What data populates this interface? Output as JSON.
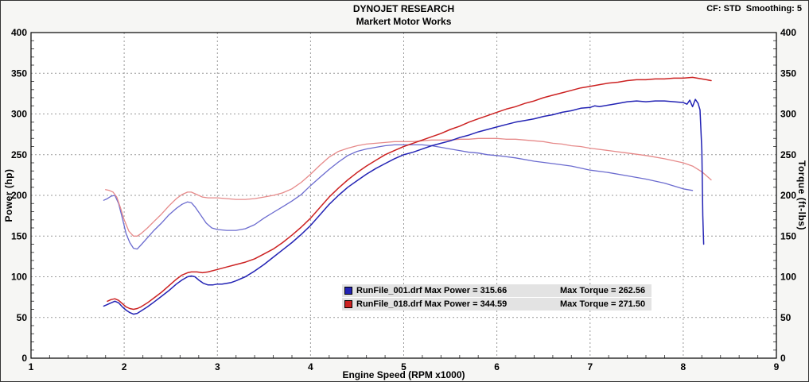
{
  "header": {
    "title": "DYNOJET RESEARCH",
    "subtitle": "Markert Motor Works",
    "correction_info": "CF: STD  Smoothing: 5"
  },
  "chart_data": {
    "type": "line",
    "title": "DYNOJET RESEARCH",
    "subtitle": "Markert Motor Works",
    "xlabel": "Engine Speed (RPM x1000)",
    "ylabel_left": "Power (hp)",
    "ylabel_right": "Torque (ft-lbs)",
    "xlim": [
      1,
      9
    ],
    "ylim": [
      0,
      400
    ],
    "x_ticks": [
      1,
      2,
      3,
      4,
      5,
      6,
      7,
      8,
      9
    ],
    "y_ticks": [
      0,
      50,
      100,
      150,
      200,
      250,
      300,
      350,
      400
    ],
    "grid": "dashed",
    "correction": "STD",
    "smoothing": 5,
    "runs": [
      {
        "file": "RunFile_001.drf",
        "max_power": 315.66,
        "max_torque": 262.56,
        "color": "#2323b4"
      },
      {
        "file": "RunFile_018.drf",
        "max_power": 344.59,
        "max_torque": 271.5,
        "color": "#cc2222"
      }
    ],
    "legend": [
      {
        "color": "#2323b4",
        "power_text": "RunFile_001.drf Max Power = 315.66",
        "torque_text": "Max Torque = 262.56"
      },
      {
        "color": "#cc2222",
        "power_text": "RunFile_018.drf Max Power = 344.59",
        "torque_text": "Max Torque = 271.50"
      }
    ],
    "series": [
      {
        "id": "run001-torque",
        "label": "RunFile_001 Torque (ft-lbs)",
        "axis": "right",
        "color": "#6b6bcf",
        "width": 1.3,
        "points": [
          [
            1.78,
            194
          ],
          [
            1.82,
            196
          ],
          [
            1.86,
            199
          ],
          [
            1.9,
            200
          ],
          [
            1.94,
            190
          ],
          [
            1.98,
            172
          ],
          [
            2.02,
            153
          ],
          [
            2.06,
            142
          ],
          [
            2.1,
            135
          ],
          [
            2.14,
            134
          ],
          [
            2.18,
            139
          ],
          [
            2.25,
            148
          ],
          [
            2.32,
            157
          ],
          [
            2.4,
            166
          ],
          [
            2.48,
            176
          ],
          [
            2.56,
            184
          ],
          [
            2.62,
            189
          ],
          [
            2.68,
            192
          ],
          [
            2.72,
            191
          ],
          [
            2.76,
            186
          ],
          [
            2.82,
            176
          ],
          [
            2.88,
            166
          ],
          [
            2.94,
            160
          ],
          [
            3.0,
            158
          ],
          [
            3.1,
            157
          ],
          [
            3.2,
            157
          ],
          [
            3.3,
            159
          ],
          [
            3.4,
            164
          ],
          [
            3.5,
            172
          ],
          [
            3.6,
            179
          ],
          [
            3.7,
            186
          ],
          [
            3.8,
            193
          ],
          [
            3.9,
            201
          ],
          [
            4.0,
            212
          ],
          [
            4.1,
            222
          ],
          [
            4.2,
            232
          ],
          [
            4.3,
            241
          ],
          [
            4.4,
            249
          ],
          [
            4.5,
            254
          ],
          [
            4.6,
            257
          ],
          [
            4.7,
            259
          ],
          [
            4.8,
            261
          ],
          [
            4.9,
            262
          ],
          [
            5.0,
            262
          ],
          [
            5.1,
            262
          ],
          [
            5.2,
            262
          ],
          [
            5.3,
            261
          ],
          [
            5.4,
            259
          ],
          [
            5.5,
            257
          ],
          [
            5.6,
            255
          ],
          [
            5.7,
            253
          ],
          [
            5.8,
            252
          ],
          [
            5.9,
            250
          ],
          [
            6.0,
            249
          ],
          [
            6.2,
            246
          ],
          [
            6.4,
            242
          ],
          [
            6.6,
            239
          ],
          [
            6.8,
            236
          ],
          [
            7.0,
            231
          ],
          [
            7.2,
            228
          ],
          [
            7.4,
            224
          ],
          [
            7.6,
            220
          ],
          [
            7.8,
            215
          ],
          [
            8.0,
            208
          ],
          [
            8.1,
            206
          ]
        ]
      },
      {
        "id": "run018-torque",
        "label": "RunFile_018 Torque (ft-lbs)",
        "axis": "right",
        "color": "#e68a8a",
        "width": 1.3,
        "points": [
          [
            1.8,
            207
          ],
          [
            1.84,
            206
          ],
          [
            1.88,
            204
          ],
          [
            1.92,
            198
          ],
          [
            1.96,
            185
          ],
          [
            2.0,
            170
          ],
          [
            2.05,
            156
          ],
          [
            2.1,
            150
          ],
          [
            2.14,
            150
          ],
          [
            2.18,
            153
          ],
          [
            2.25,
            160
          ],
          [
            2.32,
            168
          ],
          [
            2.4,
            177
          ],
          [
            2.48,
            187
          ],
          [
            2.56,
            196
          ],
          [
            2.62,
            201
          ],
          [
            2.68,
            204
          ],
          [
            2.72,
            204
          ],
          [
            2.78,
            201
          ],
          [
            2.84,
            198
          ],
          [
            2.9,
            197
          ],
          [
            3.0,
            197
          ],
          [
            3.1,
            196
          ],
          [
            3.2,
            195
          ],
          [
            3.3,
            195
          ],
          [
            3.4,
            196
          ],
          [
            3.5,
            198
          ],
          [
            3.6,
            200
          ],
          [
            3.7,
            203
          ],
          [
            3.8,
            208
          ],
          [
            3.9,
            216
          ],
          [
            4.0,
            226
          ],
          [
            4.1,
            237
          ],
          [
            4.2,
            247
          ],
          [
            4.3,
            254
          ],
          [
            4.4,
            258
          ],
          [
            4.5,
            261
          ],
          [
            4.6,
            263
          ],
          [
            4.7,
            264
          ],
          [
            4.8,
            265
          ],
          [
            4.9,
            266
          ],
          [
            5.0,
            266
          ],
          [
            5.1,
            266
          ],
          [
            5.2,
            267
          ],
          [
            5.3,
            268
          ],
          [
            5.4,
            268
          ],
          [
            5.5,
            268
          ],
          [
            5.6,
            269
          ],
          [
            5.7,
            269
          ],
          [
            5.8,
            270
          ],
          [
            5.9,
            270
          ],
          [
            6.0,
            270
          ],
          [
            6.1,
            269
          ],
          [
            6.2,
            269
          ],
          [
            6.3,
            268
          ],
          [
            6.4,
            267
          ],
          [
            6.5,
            266
          ],
          [
            6.6,
            264
          ],
          [
            6.7,
            263
          ],
          [
            6.8,
            261
          ],
          [
            6.9,
            260
          ],
          [
            7.0,
            258
          ],
          [
            7.2,
            255
          ],
          [
            7.4,
            252
          ],
          [
            7.6,
            249
          ],
          [
            7.8,
            245
          ],
          [
            8.0,
            240
          ],
          [
            8.1,
            236
          ],
          [
            8.2,
            229
          ],
          [
            8.25,
            224
          ],
          [
            8.3,
            219
          ]
        ]
      },
      {
        "id": "run001-power",
        "label": "RunFile_001 Power (hp)",
        "axis": "left",
        "color": "#2323b4",
        "width": 1.5,
        "points": [
          [
            1.78,
            64
          ],
          [
            1.82,
            66
          ],
          [
            1.86,
            68
          ],
          [
            1.9,
            70
          ],
          [
            1.94,
            68
          ],
          [
            1.98,
            63
          ],
          [
            2.02,
            59
          ],
          [
            2.06,
            56
          ],
          [
            2.1,
            54
          ],
          [
            2.14,
            55
          ],
          [
            2.18,
            58
          ],
          [
            2.25,
            63
          ],
          [
            2.32,
            69
          ],
          [
            2.4,
            76
          ],
          [
            2.48,
            83
          ],
          [
            2.56,
            91
          ],
          [
            2.62,
            96
          ],
          [
            2.68,
            100
          ],
          [
            2.72,
            101
          ],
          [
            2.76,
            100
          ],
          [
            2.8,
            96
          ],
          [
            2.85,
            92
          ],
          [
            2.9,
            90
          ],
          [
            2.95,
            90
          ],
          [
            3.0,
            91
          ],
          [
            3.05,
            91
          ],
          [
            3.1,
            92
          ],
          [
            3.15,
            93
          ],
          [
            3.2,
            95
          ],
          [
            3.3,
            100
          ],
          [
            3.4,
            107
          ],
          [
            3.5,
            115
          ],
          [
            3.6,
            124
          ],
          [
            3.7,
            133
          ],
          [
            3.8,
            142
          ],
          [
            3.9,
            152
          ],
          [
            4.0,
            163
          ],
          [
            4.1,
            176
          ],
          [
            4.2,
            189
          ],
          [
            4.3,
            200
          ],
          [
            4.4,
            210
          ],
          [
            4.5,
            218
          ],
          [
            4.6,
            226
          ],
          [
            4.7,
            233
          ],
          [
            4.8,
            239
          ],
          [
            4.9,
            245
          ],
          [
            5.0,
            250
          ],
          [
            5.1,
            253
          ],
          [
            5.2,
            257
          ],
          [
            5.3,
            261
          ],
          [
            5.4,
            264
          ],
          [
            5.5,
            267
          ],
          [
            5.6,
            271
          ],
          [
            5.7,
            274
          ],
          [
            5.8,
            278
          ],
          [
            5.9,
            281
          ],
          [
            6.0,
            284
          ],
          [
            6.1,
            287
          ],
          [
            6.2,
            290
          ],
          [
            6.3,
            292
          ],
          [
            6.4,
            294
          ],
          [
            6.5,
            297
          ],
          [
            6.6,
            299
          ],
          [
            6.7,
            302
          ],
          [
            6.8,
            304
          ],
          [
            6.9,
            307
          ],
          [
            7.0,
            308
          ],
          [
            7.05,
            310
          ],
          [
            7.1,
            309
          ],
          [
            7.2,
            311
          ],
          [
            7.3,
            313
          ],
          [
            7.4,
            315
          ],
          [
            7.5,
            316
          ],
          [
            7.6,
            315
          ],
          [
            7.7,
            316
          ],
          [
            7.8,
            316
          ],
          [
            7.9,
            315
          ],
          [
            8.0,
            314
          ],
          [
            8.04,
            312
          ],
          [
            8.07,
            317
          ],
          [
            8.1,
            309
          ],
          [
            8.13,
            318
          ],
          [
            8.16,
            313
          ],
          [
            8.18,
            305
          ],
          [
            8.2,
            255
          ],
          [
            8.21,
            175
          ],
          [
            8.22,
            140
          ]
        ]
      },
      {
        "id": "run018-power",
        "label": "RunFile_018 Power (hp)",
        "axis": "left",
        "color": "#cc2222",
        "width": 1.5,
        "points": [
          [
            1.82,
            70
          ],
          [
            1.86,
            72
          ],
          [
            1.9,
            73
          ],
          [
            1.94,
            71
          ],
          [
            1.98,
            67
          ],
          [
            2.02,
            63
          ],
          [
            2.06,
            61
          ],
          [
            2.1,
            60
          ],
          [
            2.14,
            61
          ],
          [
            2.18,
            63
          ],
          [
            2.25,
            68
          ],
          [
            2.32,
            74
          ],
          [
            2.4,
            81
          ],
          [
            2.48,
            89
          ],
          [
            2.56,
            97
          ],
          [
            2.62,
            102
          ],
          [
            2.68,
            105
          ],
          [
            2.72,
            106
          ],
          [
            2.78,
            106
          ],
          [
            2.84,
            105
          ],
          [
            2.9,
            106
          ],
          [
            3.0,
            109
          ],
          [
            3.1,
            112
          ],
          [
            3.2,
            115
          ],
          [
            3.3,
            118
          ],
          [
            3.4,
            122
          ],
          [
            3.5,
            128
          ],
          [
            3.6,
            134
          ],
          [
            3.7,
            142
          ],
          [
            3.8,
            151
          ],
          [
            3.9,
            161
          ],
          [
            4.0,
            172
          ],
          [
            4.1,
            185
          ],
          [
            4.2,
            198
          ],
          [
            4.3,
            209
          ],
          [
            4.4,
            219
          ],
          [
            4.5,
            228
          ],
          [
            4.6,
            236
          ],
          [
            4.7,
            243
          ],
          [
            4.8,
            250
          ],
          [
            4.9,
            255
          ],
          [
            5.0,
            260
          ],
          [
            5.1,
            264
          ],
          [
            5.2,
            268
          ],
          [
            5.3,
            272
          ],
          [
            5.4,
            276
          ],
          [
            5.5,
            281
          ],
          [
            5.6,
            285
          ],
          [
            5.7,
            290
          ],
          [
            5.8,
            294
          ],
          [
            5.9,
            298
          ],
          [
            6.0,
            302
          ],
          [
            6.1,
            306
          ],
          [
            6.2,
            309
          ],
          [
            6.3,
            313
          ],
          [
            6.4,
            316
          ],
          [
            6.5,
            320
          ],
          [
            6.6,
            323
          ],
          [
            6.7,
            326
          ],
          [
            6.8,
            329
          ],
          [
            6.9,
            332
          ],
          [
            7.0,
            334
          ],
          [
            7.1,
            336
          ],
          [
            7.2,
            338
          ],
          [
            7.3,
            339
          ],
          [
            7.4,
            341
          ],
          [
            7.5,
            342
          ],
          [
            7.6,
            342
          ],
          [
            7.7,
            343
          ],
          [
            7.8,
            343
          ],
          [
            7.9,
            344
          ],
          [
            8.0,
            344
          ],
          [
            8.1,
            345
          ],
          [
            8.15,
            344
          ],
          [
            8.2,
            343
          ],
          [
            8.25,
            342
          ],
          [
            8.3,
            341
          ]
        ]
      }
    ]
  }
}
